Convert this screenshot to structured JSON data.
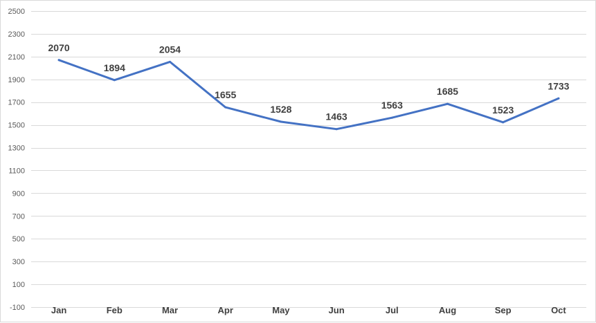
{
  "chart_data": {
    "type": "line",
    "categories": [
      "Jan",
      "Feb",
      "Mar",
      "Apr",
      "May",
      "Jun",
      "Jul",
      "Aug",
      "Sep",
      "Oct"
    ],
    "series": [
      {
        "values": [
          2070,
          1894,
          2054,
          1655,
          1528,
          1463,
          1563,
          1685,
          1523,
          1733
        ],
        "color": "#4472c4"
      }
    ],
    "data_labels": [
      "2070",
      "1894",
      "2054",
      "1655",
      "1528",
      "1463",
      "1563",
      "1685",
      "1523",
      "1733"
    ],
    "ylim": [
      -100,
      2500
    ],
    "yticks": [
      -100,
      100,
      300,
      500,
      700,
      900,
      1100,
      1300,
      1500,
      1700,
      1900,
      2100,
      2300,
      2500
    ],
    "ytick_labels": [
      "-100",
      "100",
      "300",
      "500",
      "700",
      "900",
      "1100",
      "1300",
      "1500",
      "1700",
      "1900",
      "2100",
      "2300",
      "2500"
    ],
    "grid": true,
    "legend": "none",
    "title": "",
    "xlabel": "",
    "ylabel": ""
  }
}
